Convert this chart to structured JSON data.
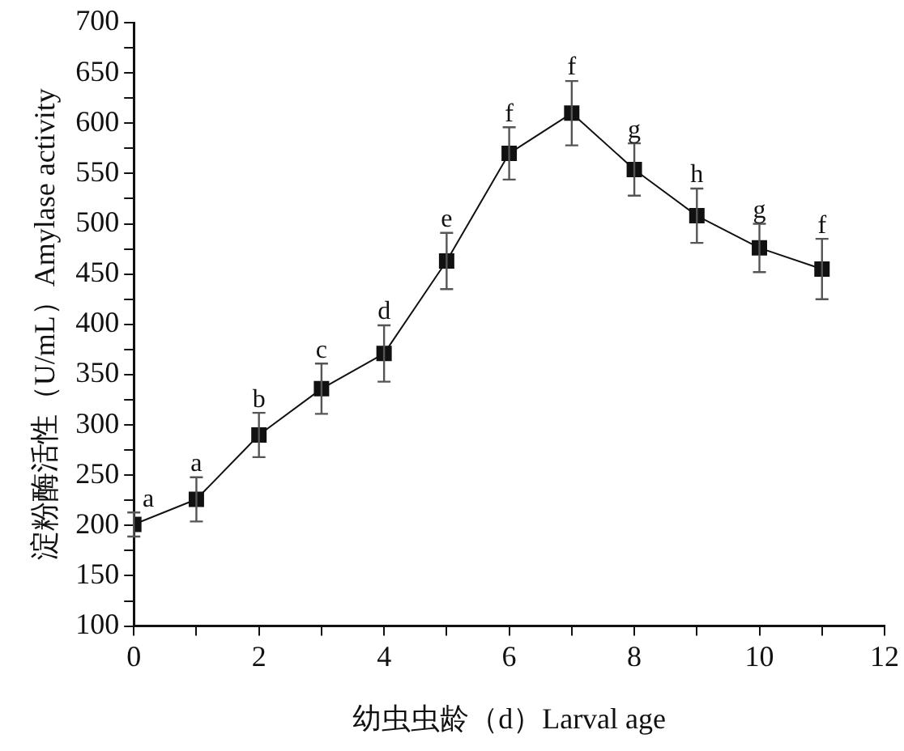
{
  "chart_data": {
    "type": "line",
    "xlabel": "幼虫虫龄（d）Larval age",
    "ylabel": "淀粉酶活性（U/mL）Amylase activity",
    "x": [
      0,
      1,
      2,
      3,
      4,
      5,
      6,
      7,
      8,
      9,
      10,
      11
    ],
    "series": [
      {
        "color": "#111111",
        "values": [
          201,
          226,
          290,
          336,
          371,
          463,
          570,
          610,
          554,
          508,
          476,
          455
        ],
        "errors": [
          12,
          22,
          22,
          25,
          28,
          28,
          26,
          32,
          26,
          27,
          24,
          30
        ]
      }
    ],
    "xlim": [
      0,
      12
    ],
    "ylim": [
      100,
      700
    ],
    "xticks": [
      0,
      {
        "value": 1,
        "label": null
      },
      2,
      {
        "value": 3,
        "label": null
      },
      4,
      {
        "value": 5,
        "label": null
      },
      6,
      {
        "value": 7,
        "label": null
      },
      8,
      {
        "value": 9,
        "label": null
      },
      10,
      {
        "value": 11,
        "label": null
      },
      12
    ],
    "yticks": [
      100,
      {
        "value": 125,
        "label": null
      },
      150,
      {
        "value": 175,
        "label": null
      },
      200,
      {
        "value": 225,
        "label": null
      },
      250,
      {
        "value": 275,
        "label": null
      },
      300,
      {
        "value": 325,
        "label": null
      },
      350,
      {
        "value": 375,
        "label": null
      },
      400,
      {
        "value": 425,
        "label": null
      },
      450,
      {
        "value": 475,
        "label": null
      },
      500,
      {
        "value": 525,
        "label": null
      },
      550,
      {
        "value": 575,
        "label": null
      },
      600,
      {
        "value": 625,
        "label": null
      },
      650,
      {
        "value": 675,
        "label": null
      },
      700
    ],
    "annotations": [
      {
        "text": "a",
        "x": 0,
        "y": 213
      },
      {
        "text": "a",
        "x": 1,
        "y": 248
      },
      {
        "text": "b",
        "x": 2,
        "y": 312
      },
      {
        "text": "c",
        "x": 3,
        "y": 361
      },
      {
        "text": "d",
        "x": 4,
        "y": 399
      },
      {
        "text": "e",
        "x": 5,
        "y": 491
      },
      {
        "text": "f",
        "x": 6,
        "y": 596
      },
      {
        "text": "f",
        "x": 7,
        "y": 642
      },
      {
        "text": "g",
        "x": 8,
        "y": 580
      },
      {
        "text": "h",
        "x": 9,
        "y": 535
      },
      {
        "text": "g",
        "x": 10,
        "y": 500
      },
      {
        "text": "f",
        "x": 11,
        "y": 485
      }
    ],
    "grid": false,
    "legend": false,
    "marker": "square",
    "line_style": "solid"
  }
}
